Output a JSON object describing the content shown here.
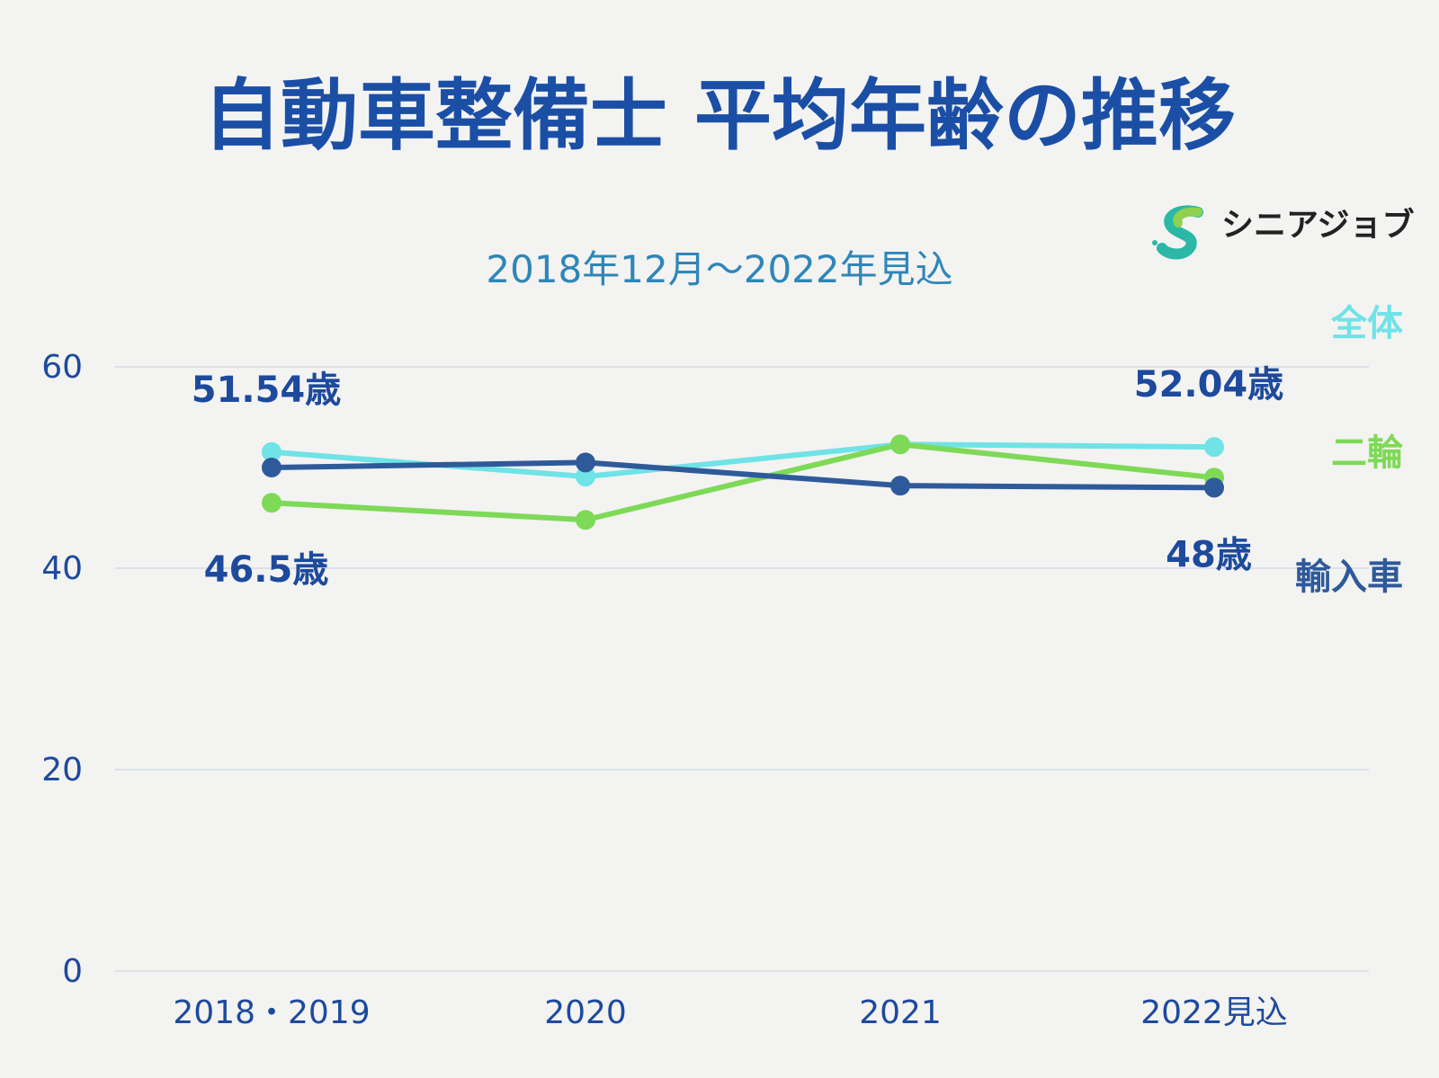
{
  "title": "自動車整備士 平均年齢の推移",
  "logo": {
    "text": "シニアジョブ"
  },
  "chart_data": {
    "type": "line",
    "title": "自動車整備士 平均年齢の推移",
    "subtitle": "2018年12月～2022年見込",
    "categories": [
      "2018・2019",
      "2020",
      "2021",
      "2022見込"
    ],
    "ylim": [
      0,
      60
    ],
    "yticks": [
      "0",
      "20",
      "40",
      "60"
    ],
    "grid": true,
    "legend_position": "right",
    "series": [
      {
        "name": "全体",
        "color": "#6fe3e6",
        "values": [
          51.54,
          49.1,
          52.3,
          52.04
        ]
      },
      {
        "name": "二輪",
        "color": "#7ed957",
        "values": [
          46.5,
          44.8,
          52.3,
          49.0
        ]
      },
      {
        "name": "輸入車",
        "color": "#2f5a9a",
        "values": [
          50.0,
          50.5,
          48.2,
          48.0
        ]
      }
    ],
    "annotations": [
      {
        "text": "51.54歳",
        "series": "全体",
        "category": "2018・2019",
        "placement": "above"
      },
      {
        "text": "52.04歳",
        "series": "全体",
        "category": "2022見込",
        "placement": "above"
      },
      {
        "text": "46.5歳",
        "series": "二輪",
        "category": "2018・2019",
        "placement": "below"
      },
      {
        "text": "48歳",
        "series": "輸入車",
        "category": "2022見込",
        "placement": "below"
      }
    ]
  }
}
